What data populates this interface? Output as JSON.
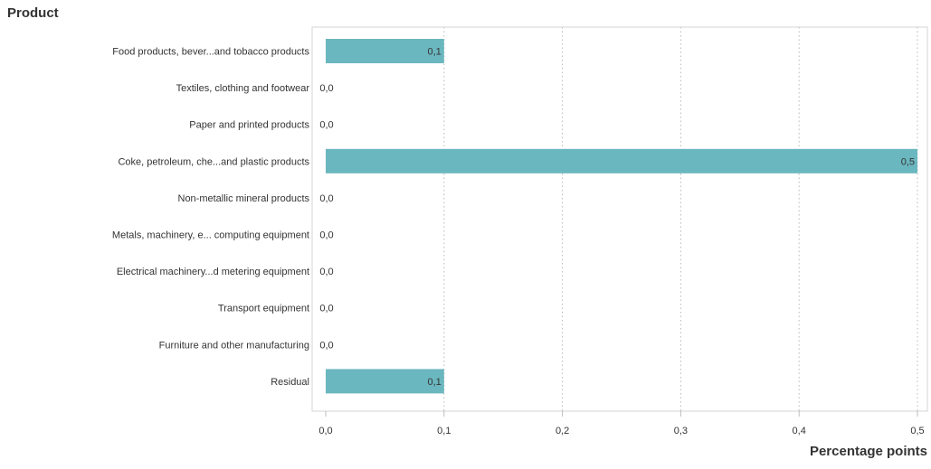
{
  "chart_data": {
    "type": "bar",
    "orientation": "horizontal",
    "title": "Product",
    "xlabel": "Percentage points",
    "ylabel": "",
    "categories": [
      "Food products, bever...and tobacco products",
      "Textiles, clothing and footwear",
      "Paper and printed products",
      "Coke, petroleum, che...and plastic products",
      "Non-metallic mineral products",
      "Metals, machinery, e... computing equipment",
      "Electrical machinery...d metering equipment",
      "Transport equipment",
      "Furniture and other manufacturing",
      "Residual"
    ],
    "values": [
      0.1,
      0.0,
      0.0,
      0.5,
      0.0,
      0.0,
      0.0,
      0.0,
      0.0,
      0.1
    ],
    "value_labels": [
      "0,1",
      "0,0",
      "0,0",
      "0,5",
      "0,0",
      "0,0",
      "0,0",
      "0,0",
      "0,0",
      "0,1"
    ],
    "xlim": [
      0,
      0.5
    ],
    "xticks": [
      0,
      0.1,
      0.2,
      0.3,
      0.4,
      0.5
    ],
    "xtick_labels": [
      "0,0",
      "0,1",
      "0,2",
      "0,3",
      "0,4",
      "0,5"
    ],
    "grid": "vertical dotted",
    "bar_color": "#6bb7bf"
  }
}
